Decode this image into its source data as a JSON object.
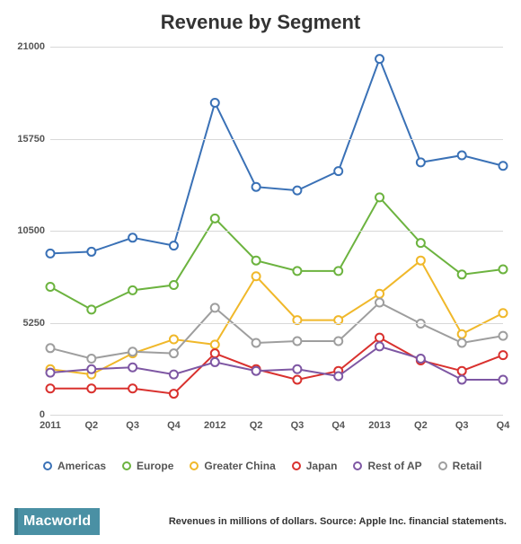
{
  "chart": {
    "title": "Revenue by Segment",
    "type": "line",
    "ylim": [
      0,
      21000
    ],
    "yticks": [
      0,
      5250,
      10500,
      15750,
      21000
    ],
    "xlabels": [
      "2011",
      "Q2",
      "Q3",
      "Q4",
      "2012",
      "Q2",
      "Q3",
      "Q4",
      "2013",
      "Q2",
      "Q3",
      "Q4"
    ],
    "grid_color": "#d8d8d8",
    "background_color": "#ffffff",
    "line_width": 2,
    "marker_radius": 4.5,
    "marker_fill": "#ffffff",
    "title_fontsize": 22,
    "axis_label_fontsize": 11,
    "series": [
      {
        "name": "Americas",
        "color": "#3a71b6",
        "values": [
          9200,
          9300,
          10100,
          9650,
          17800,
          13000,
          12800,
          13900,
          20300,
          14400,
          14800,
          14200
        ]
      },
      {
        "name": "Europe",
        "color": "#6cb33f",
        "values": [
          7300,
          6000,
          7100,
          7400,
          11200,
          8800,
          8200,
          8200,
          12400,
          9800,
          8000,
          8300
        ]
      },
      {
        "name": "Greater China",
        "color": "#f0b82a",
        "values": [
          2600,
          2300,
          3500,
          4300,
          4000,
          7900,
          5400,
          5400,
          6900,
          8800,
          4600,
          5800
        ]
      },
      {
        "name": "Japan",
        "color": "#d9312e",
        "values": [
          1500,
          1500,
          1500,
          1200,
          3500,
          2600,
          2000,
          2500,
          4400,
          3100,
          2500,
          3400
        ]
      },
      {
        "name": "Rest of AP",
        "color": "#7e57a3",
        "values": [
          2400,
          2600,
          2700,
          2300,
          3000,
          2500,
          2600,
          2200,
          3900,
          3200,
          2000,
          2000
        ]
      },
      {
        "name": "Retail",
        "color": "#9e9e9e",
        "values": [
          3800,
          3200,
          3600,
          3500,
          6100,
          4100,
          4200,
          4200,
          6400,
          5200,
          4100,
          4500
        ]
      }
    ]
  },
  "footer": {
    "brand": "Macworld",
    "source": "Revenues in millions of dollars. Source: Apple Inc. financial statements."
  }
}
